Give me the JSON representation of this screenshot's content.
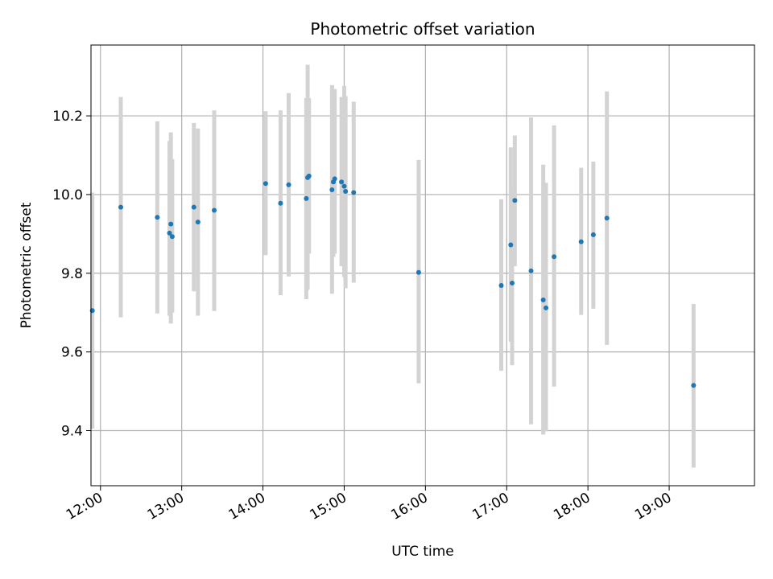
{
  "chart_data": {
    "type": "scatter",
    "title": "Photometric offset variation",
    "xlabel": "UTC time",
    "ylabel": "Photometric offset",
    "x_ticks": [
      "12:00",
      "13:00",
      "14:00",
      "15:00",
      "16:00",
      "17:00",
      "18:00",
      "19:00"
    ],
    "y_ticks": [
      "9.4",
      "9.6",
      "9.8",
      "10.0",
      "10.2"
    ],
    "xlim": [
      "11:53",
      "20:03"
    ],
    "ylim": [
      9.26,
      10.38
    ],
    "grid": true,
    "colors": {
      "point": "#1f77b4",
      "errorbar": "#d3d3d3",
      "grid": "#b0b0b0",
      "axes": "#000000"
    },
    "points": [
      {
        "t": "11:54",
        "y": 9.705,
        "lo": 9.405,
        "hi": 10.005
      },
      {
        "t": "12:15",
        "y": 9.968,
        "lo": 9.688,
        "hi": 10.248
      },
      {
        "t": "12:42",
        "y": 9.942,
        "lo": 9.698,
        "hi": 10.186
      },
      {
        "t": "12:51",
        "y": 9.902,
        "lo": 9.692,
        "hi": 10.136
      },
      {
        "t": "12:52",
        "y": 9.925,
        "lo": 9.672,
        "hi": 10.158
      },
      {
        "t": "12:53",
        "y": 9.893,
        "lo": 9.7,
        "hi": 10.09
      },
      {
        "t": "13:09",
        "y": 9.968,
        "lo": 9.754,
        "hi": 10.182
      },
      {
        "t": "13:12",
        "y": 9.93,
        "lo": 9.692,
        "hi": 10.168
      },
      {
        "t": "13:24",
        "y": 9.96,
        "lo": 9.704,
        "hi": 10.214
      },
      {
        "t": "14:02",
        "y": 10.028,
        "lo": 9.846,
        "hi": 10.212
      },
      {
        "t": "14:13",
        "y": 9.978,
        "lo": 9.744,
        "hi": 10.214
      },
      {
        "t": "14:19",
        "y": 10.025,
        "lo": 9.792,
        "hi": 10.258
      },
      {
        "t": "14:32",
        "y": 9.99,
        "lo": 9.734,
        "hi": 10.245
      },
      {
        "t": "14:33",
        "y": 10.043,
        "lo": 9.758,
        "hi": 10.33
      },
      {
        "t": "14:34",
        "y": 10.047,
        "lo": 9.85,
        "hi": 10.245
      },
      {
        "t": "14:51",
        "y": 10.012,
        "lo": 9.748,
        "hi": 10.278
      },
      {
        "t": "14:52",
        "y": 10.032,
        "lo": 9.842,
        "hi": 10.222
      },
      {
        "t": "14:53",
        "y": 10.04,
        "lo": 9.85,
        "hi": 10.268
      },
      {
        "t": "14:58",
        "y": 10.032,
        "lo": 9.818,
        "hi": 10.248
      },
      {
        "t": "15:00",
        "y": 10.021,
        "lo": 9.79,
        "hi": 10.276
      },
      {
        "t": "15:01",
        "y": 10.008,
        "lo": 9.762,
        "hi": 10.25
      },
      {
        "t": "15:07",
        "y": 10.005,
        "lo": 9.776,
        "hi": 10.236
      },
      {
        "t": "15:55",
        "y": 9.802,
        "lo": 9.52,
        "hi": 10.088
      },
      {
        "t": "16:56",
        "y": 9.769,
        "lo": 9.552,
        "hi": 9.988
      },
      {
        "t": "17:03",
        "y": 9.872,
        "lo": 9.626,
        "hi": 10.12
      },
      {
        "t": "17:04",
        "y": 9.775,
        "lo": 9.566,
        "hi": 10.008
      },
      {
        "t": "17:06",
        "y": 9.985,
        "lo": 9.818,
        "hi": 10.15
      },
      {
        "t": "17:18",
        "y": 9.806,
        "lo": 9.416,
        "hi": 10.196
      },
      {
        "t": "17:27",
        "y": 9.732,
        "lo": 9.39,
        "hi": 10.076
      },
      {
        "t": "17:29",
        "y": 9.712,
        "lo": 9.398,
        "hi": 10.03
      },
      {
        "t": "17:35",
        "y": 9.842,
        "lo": 9.512,
        "hi": 10.176
      },
      {
        "t": "17:55",
        "y": 9.88,
        "lo": 9.694,
        "hi": 10.068
      },
      {
        "t": "18:04",
        "y": 9.898,
        "lo": 9.71,
        "hi": 10.084
      },
      {
        "t": "18:14",
        "y": 9.94,
        "lo": 9.618,
        "hi": 10.262
      },
      {
        "t": "19:18",
        "y": 9.515,
        "lo": 9.306,
        "hi": 9.722
      }
    ]
  }
}
